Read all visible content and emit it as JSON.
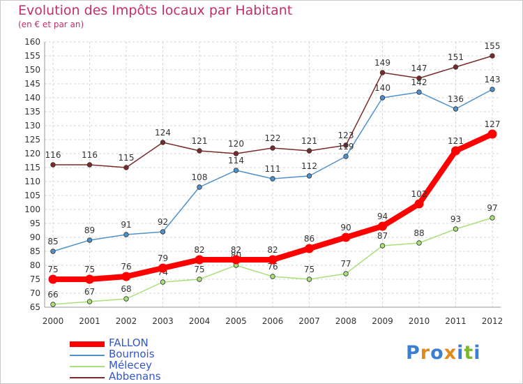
{
  "chart_data": {
    "type": "line",
    "title": "Evolution des Impôts locaux par Habitant",
    "subtitle": "(en € et par an)",
    "xlabel": "",
    "ylabel": "",
    "x": [
      "2000",
      "2001",
      "2002",
      "2003",
      "2004",
      "2005",
      "2006",
      "2007",
      "2008",
      "2009",
      "2010",
      "2011",
      "2012"
    ],
    "ylim": [
      65,
      160
    ],
    "yticks": [
      65,
      70,
      75,
      80,
      85,
      90,
      95,
      100,
      105,
      110,
      115,
      120,
      125,
      130,
      135,
      140,
      145,
      150,
      155,
      160
    ],
    "grid": true,
    "legend_position": "bottom-left",
    "series": [
      {
        "name": "FALLON",
        "color": "#ff0000",
        "values": [
          75,
          75,
          76,
          79,
          82,
          82,
          82,
          86,
          90,
          94,
          102,
          121,
          127
        ]
      },
      {
        "name": "Bournois",
        "color": "#4f91cc",
        "values": [
          85,
          89,
          91,
          92,
          108,
          114,
          111,
          112,
          119,
          140,
          142,
          136,
          143
        ]
      },
      {
        "name": "Mélecey",
        "color": "#a8e07a",
        "values": [
          66,
          67,
          68,
          74,
          75,
          80,
          76,
          75,
          77,
          87,
          88,
          93,
          97
        ]
      },
      {
        "name": "Abbenans",
        "color": "#7a2a2a",
        "values": [
          116,
          116,
          115,
          124,
          121,
          120,
          122,
          121,
          123,
          149,
          147,
          151,
          155
        ]
      }
    ]
  },
  "logo": {
    "text": "Proxiti",
    "colors": [
      "#3a7fd0",
      "#e08a1a",
      "#3a7fd0",
      "#e08a1a",
      "#3a7fd0",
      "#7cb82f",
      "#3a7fd0"
    ]
  }
}
